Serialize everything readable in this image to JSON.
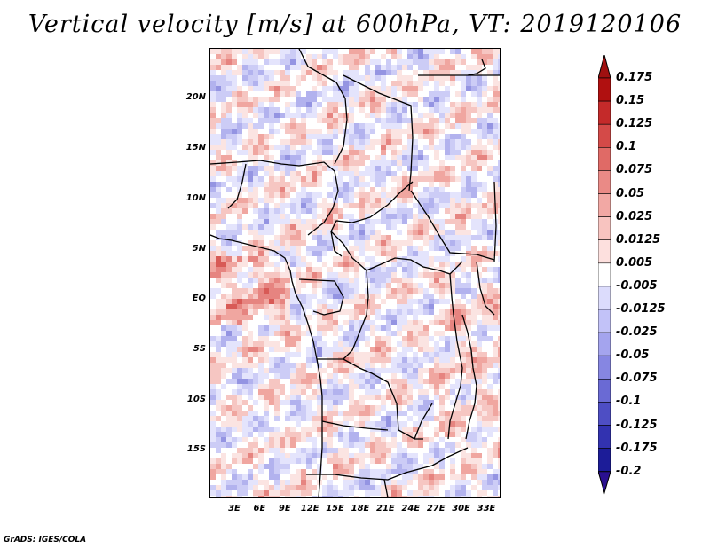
{
  "title": "Vertical velocity [m/s] at 600hPa, VT: 2019120106",
  "credit": "GrADS: IGES/COLA",
  "map": {
    "lat_labels": [
      "20N",
      "15N",
      "10N",
      "5N",
      "EQ",
      "5S",
      "10S",
      "15S"
    ],
    "lon_labels": [
      "3E",
      "6E",
      "9E",
      "12E",
      "15E",
      "18E",
      "21E",
      "24E",
      "27E",
      "30E",
      "33E"
    ]
  },
  "colorbar": {
    "labels": [
      "0.175",
      "0.15",
      "0.125",
      "0.1",
      "0.075",
      "0.05",
      "0.025",
      "0.0125",
      "0.005",
      "-0.005",
      "-0.0125",
      "-0.025",
      "-0.05",
      "-0.075",
      "-0.1",
      "-0.125",
      "-0.175",
      "-0.2"
    ],
    "colors": [
      "#b01010",
      "#c42a2a",
      "#d44a48",
      "#e06a66",
      "#ea8a86",
      "#f2a8a4",
      "#f8c4c0",
      "#fde0de",
      "#ffffff",
      "#dcdcfc",
      "#c2c2f8",
      "#a4a4ee",
      "#8686e2",
      "#6a6ad4",
      "#4e4ec4",
      "#3232b0",
      "#1c1c98"
    ],
    "top_cap": "#a01010",
    "bottom_cap": "#2a1090"
  }
}
